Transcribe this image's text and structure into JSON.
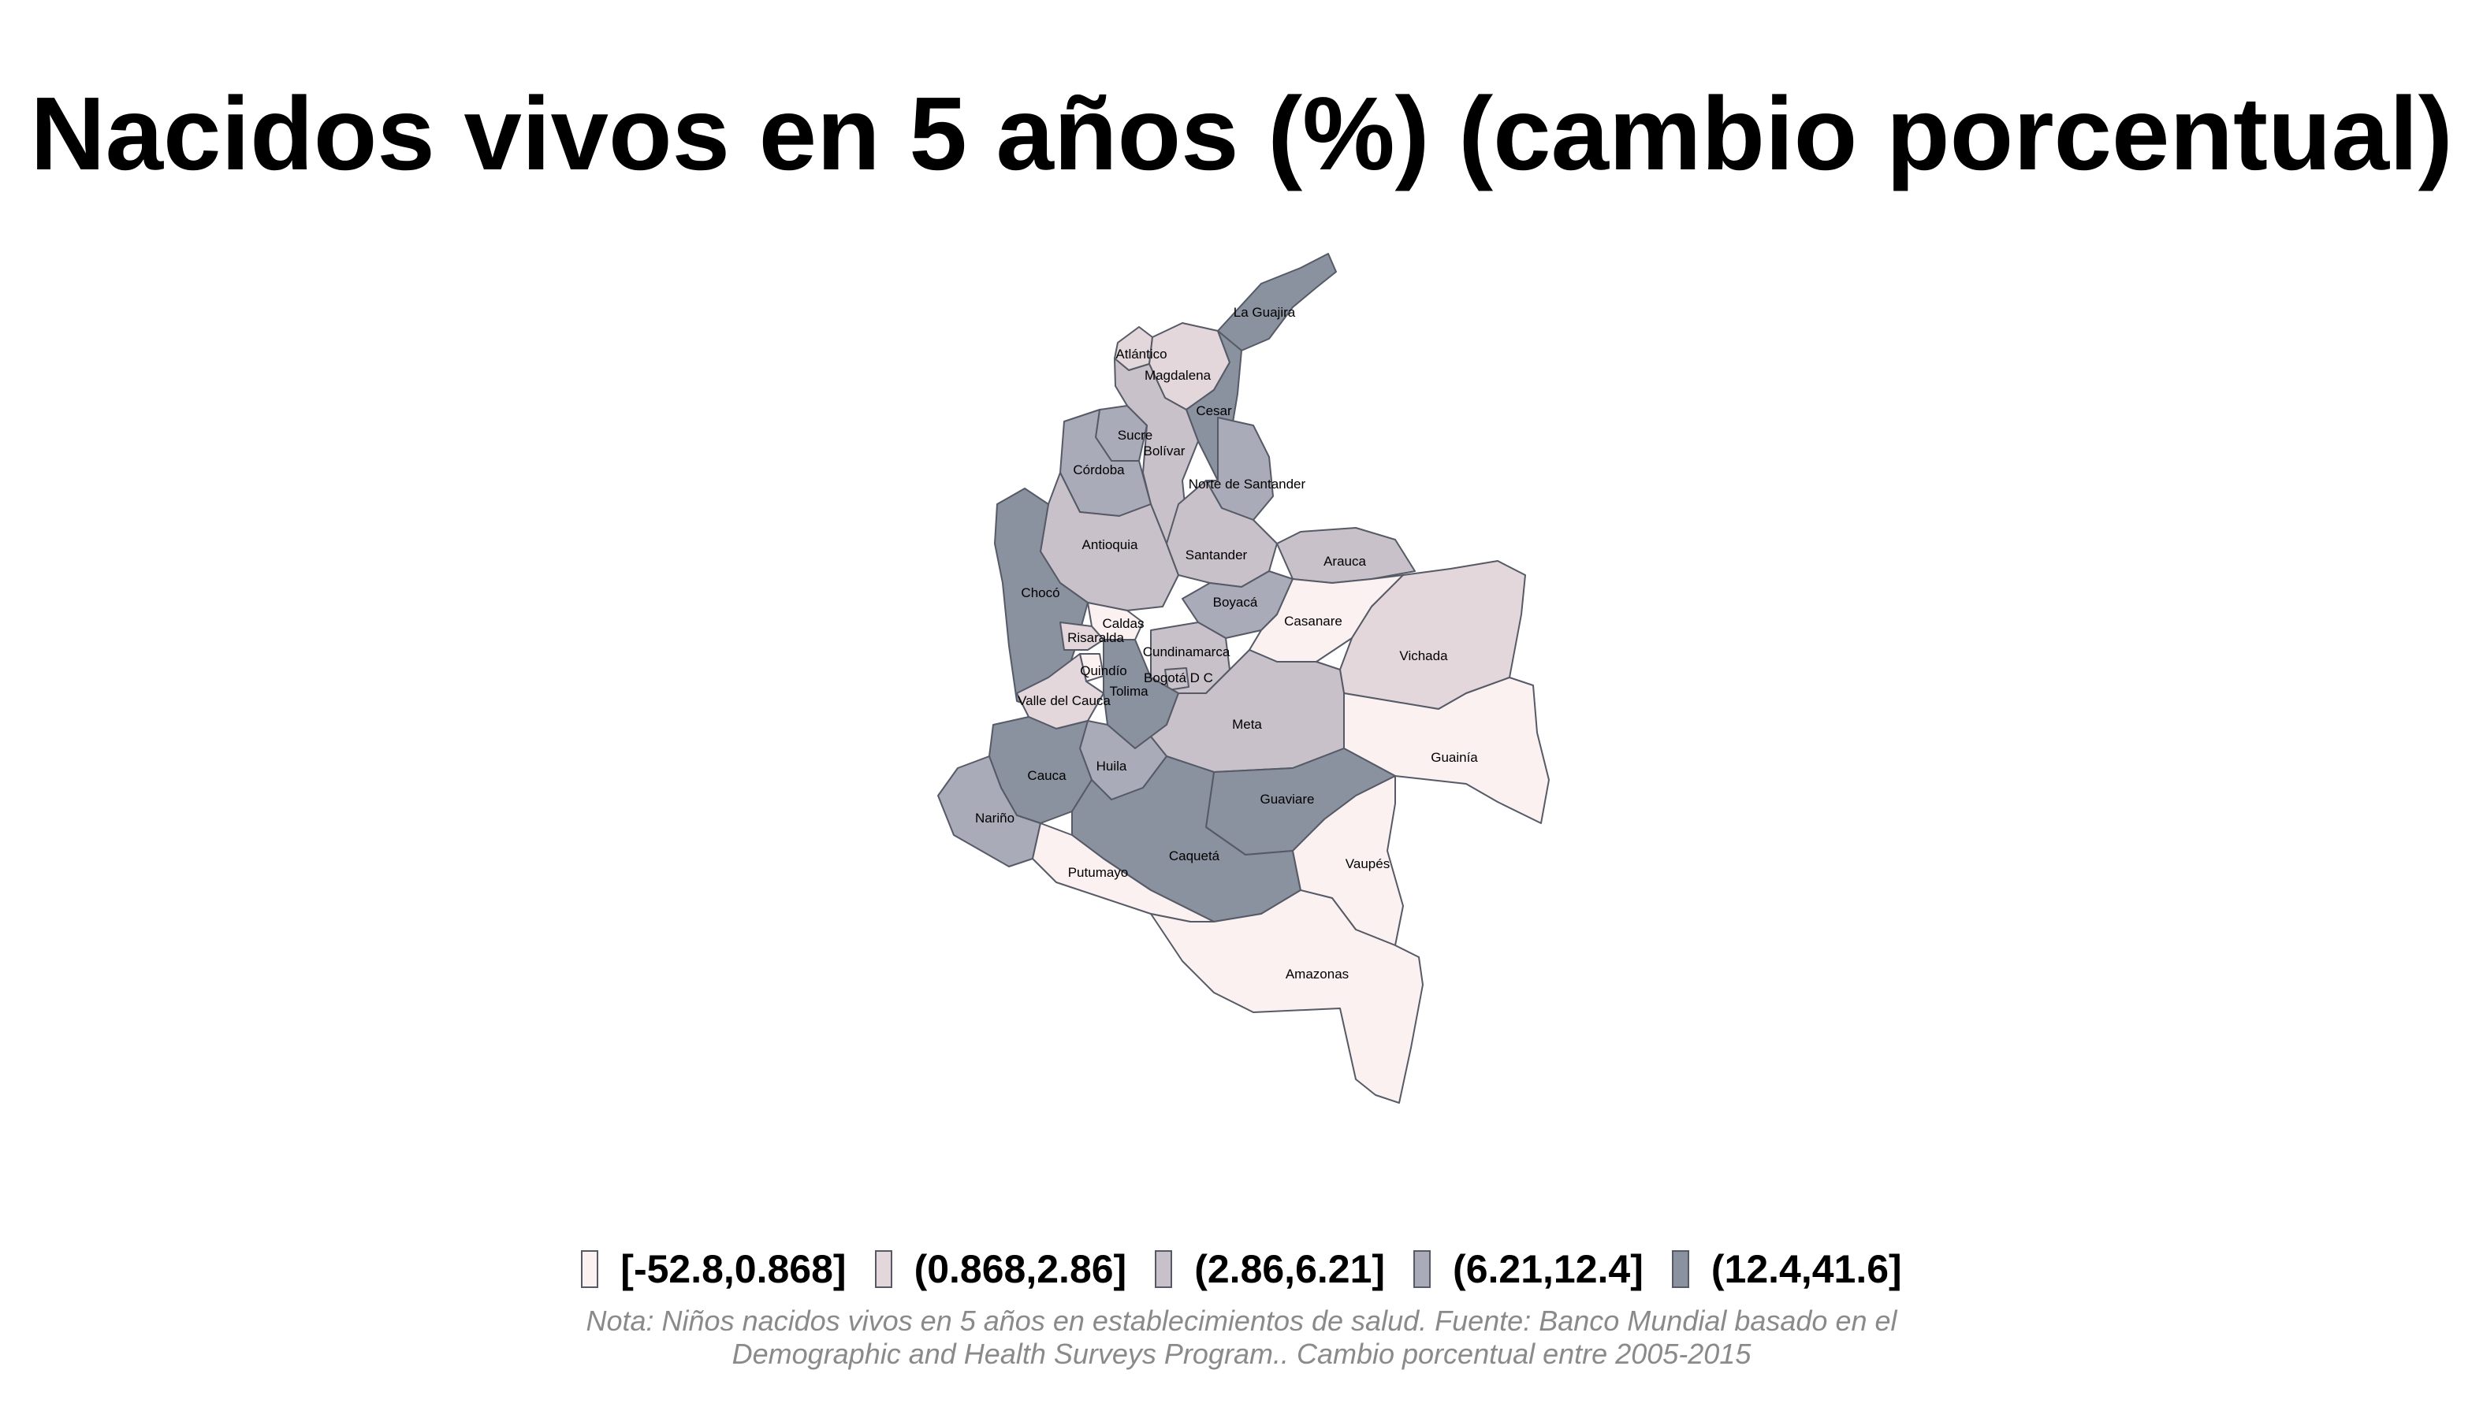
{
  "title": "Nacidos vivos en 5 años (%) (cambio porcentual)",
  "legend": {
    "bins": [
      {
        "label": "[-52.8,0.868]",
        "color": "#fbf1f1"
      },
      {
        "label": "(0.868,2.86]",
        "color": "#e3d7dc"
      },
      {
        "label": "(2.86,6.21]",
        "color": "#c9c1ca"
      },
      {
        "label": "(6.21,12.4]",
        "color": "#aaabb8"
      },
      {
        "label": "(12.4,41.6]",
        "color": "#8a919f"
      }
    ]
  },
  "note": {
    "line1": "Nota: Niños nacidos vivos en 5 años en establecimientos de salud. Fuente: Banco Mundial basado en el",
    "line2": "Demographic and Health Surveys Program.. Cambio porcentual entre 2005-2015"
  },
  "regions": [
    {
      "name": "La Guajira",
      "class": 4
    },
    {
      "name": "Atlántico",
      "class": 1
    },
    {
      "name": "Magdalena",
      "class": 1
    },
    {
      "name": "Cesar",
      "class": 4
    },
    {
      "name": "Sucre",
      "class": 3
    },
    {
      "name": "Bolívar",
      "class": 2
    },
    {
      "name": "Córdoba",
      "class": 3
    },
    {
      "name": "Norte de Santander",
      "class": 3
    },
    {
      "name": "Antioquia",
      "class": 2
    },
    {
      "name": "Santander",
      "class": 2
    },
    {
      "name": "Arauca",
      "class": 2
    },
    {
      "name": "Chocó",
      "class": 4
    },
    {
      "name": "Boyacá",
      "class": 3
    },
    {
      "name": "Casanare",
      "class": 0
    },
    {
      "name": "Vichada",
      "class": 1
    },
    {
      "name": "Caldas",
      "class": 0
    },
    {
      "name": "Risaralda",
      "class": 1
    },
    {
      "name": "Cundinamarca",
      "class": 2
    },
    {
      "name": "Quindío",
      "class": 0
    },
    {
      "name": "Bogotá D C",
      "class": 2
    },
    {
      "name": "Tolima",
      "class": 4
    },
    {
      "name": "Valle del Cauca",
      "class": 1
    },
    {
      "name": "Meta",
      "class": 2
    },
    {
      "name": "Guainía",
      "class": 0
    },
    {
      "name": "Huila",
      "class": 3
    },
    {
      "name": "Cauca",
      "class": 4
    },
    {
      "name": "Guaviare",
      "class": 4
    },
    {
      "name": "Nariño",
      "class": 3
    },
    {
      "name": "Caquetá",
      "class": 4
    },
    {
      "name": "Vaupés",
      "class": 0
    },
    {
      "name": "Putumayo",
      "class": 0
    },
    {
      "name": "Amazonas",
      "class": 0
    }
  ]
}
